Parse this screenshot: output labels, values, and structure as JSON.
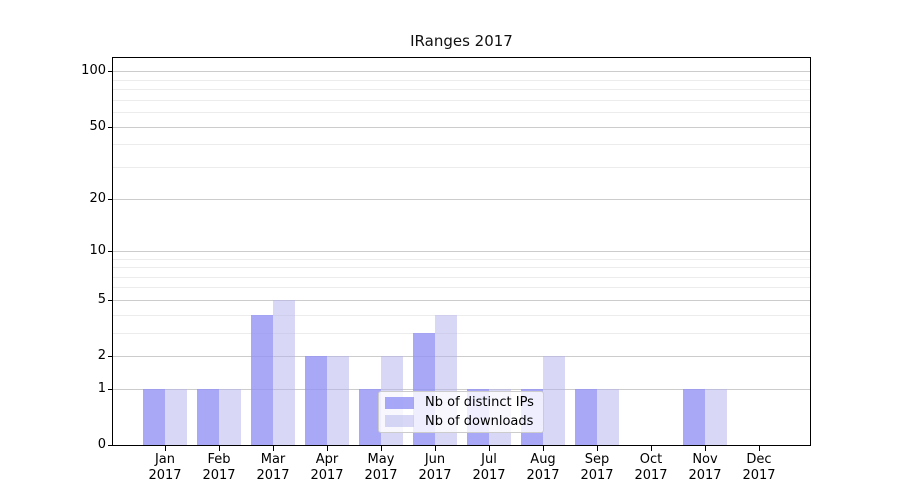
{
  "chart_data": {
    "type": "bar",
    "title": "IRanges 2017",
    "categories": [
      "Jan",
      "Feb",
      "Mar",
      "Apr",
      "May",
      "Jun",
      "Jul",
      "Aug",
      "Sep",
      "Oct",
      "Nov",
      "Dec"
    ],
    "category_year": "2017",
    "series": [
      {
        "name": "Nb of distinct IPs",
        "color": "#9292f5",
        "alpha": 0.8,
        "values": [
          1,
          1,
          4,
          2,
          1,
          3,
          1,
          1,
          1,
          0,
          1,
          0
        ]
      },
      {
        "name": "Nb of downloads",
        "color": "#b1b1ed",
        "alpha": 0.5,
        "values": [
          1,
          1,
          5,
          2,
          2,
          4,
          1,
          2,
          1,
          0,
          1,
          0
        ]
      }
    ],
    "yscale": "log1p",
    "ylim": [
      0,
      118
    ],
    "yticks_major": [
      0,
      1,
      2,
      5,
      10,
      20,
      50,
      100
    ],
    "yticks_minor": [
      3,
      4,
      6,
      7,
      8,
      9,
      30,
      40,
      60,
      70,
      80,
      90
    ],
    "grid": true,
    "legend_position": "lower center",
    "colors": {
      "grid_major": "#cccccc",
      "grid_minor": "#ececec",
      "axis": "#000000",
      "text": "#000000",
      "background": "#ffffff"
    }
  }
}
